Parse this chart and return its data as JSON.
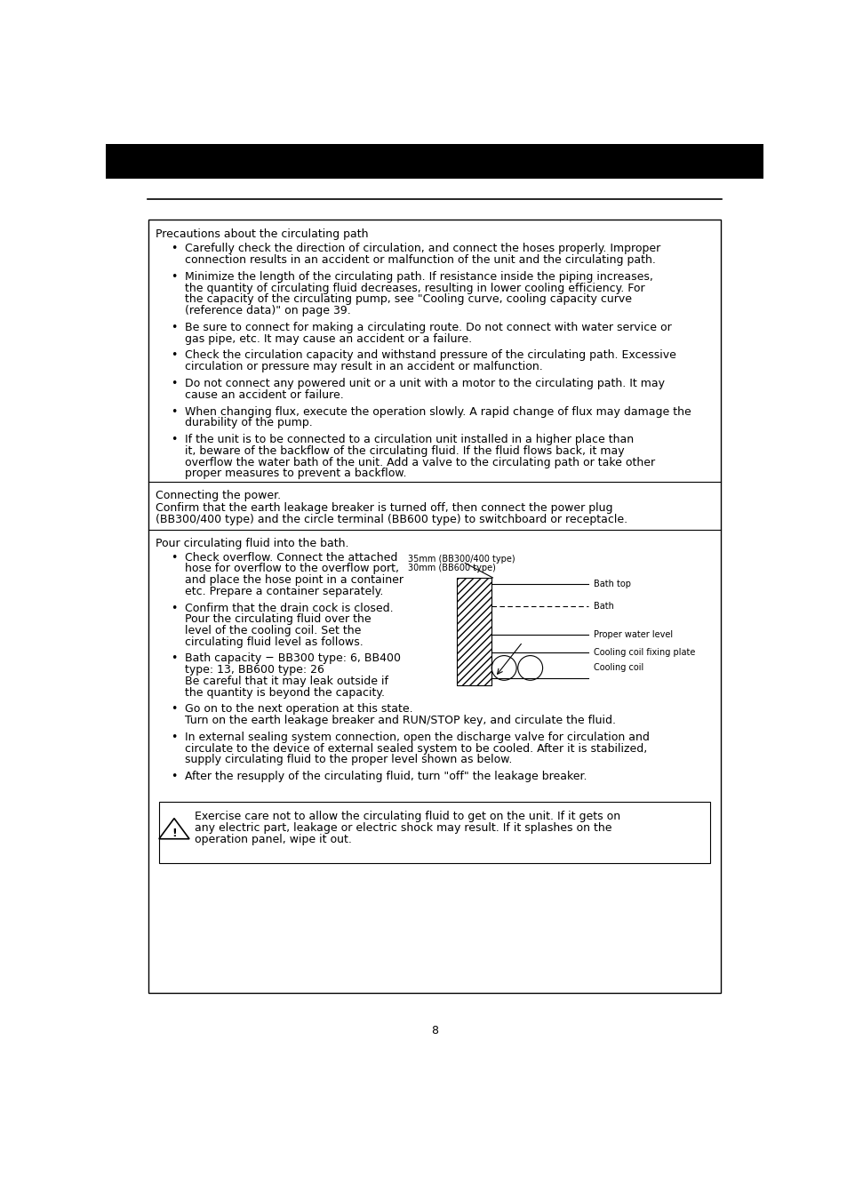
{
  "page_number": "8",
  "header_bar_color": "#000000",
  "section1_title": "Precautions about the circulating path",
  "section1_bullets": [
    "Carefully check the direction of circulation, and connect the hoses properly.  Improper connection results in an accident or malfunction of the unit and the circulating path.",
    "Minimize the length of the circulating path. If resistance inside the piping increases, the quantity of circulating fluid decreases, resulting in lower cooling efficiency.  For the capacity of the circulating pump, see \"Cooling curve, cooling capacity curve (reference data)\" on page 39.",
    "Be sure to connect for making a circulating route.   Do not connect with water service or gas pipe, etc.   It may cause an accident or a failure.",
    "Check the circulation capacity and withstand pressure of the circulating path.  Excessive circulation or pressure may result in an accident or malfunction.",
    "Do not connect any powered unit or a unit with a motor to the circulating path. It may cause an accident or failure.",
    "When changing flux, execute the operation slowly.   A rapid change of flux may damage the durability of the pump.",
    "If the unit is to be connected to a circulation unit installed in a higher place than it, beware of the backflow of the circulating fluid. If the fluid flows back, it may overflow the water bath of the unit. Add a valve to the circulating path or take other proper measures to prevent a backflow."
  ],
  "section2_title": "Connecting the power.",
  "section2_text": "Confirm that the earth leakage breaker is turned off, then connect the power plug (BB300/400 type) and the circle terminal (BB600 type) to switchboard or receptacle.",
  "section3_title": "Pour circulating fluid into the bath.",
  "section3_bullets_left": [
    "Check overflow.   Connect the attached hose for overflow to the overflow port, and place the hose point in a container etc. Prepare a container separately.",
    "Confirm that the drain cock is closed.   Pour the circulating fluid over the level of the cooling coil.   Set the circulating fluid level as follows.",
    "Bath capacity −   BB300 type: 6, BB400 type: 13, BB600 type: 26\nBe careful that it may leak outside if the quantity is beyond the capacity."
  ],
  "section3_bullets_full": [
    "Go on to the next operation at this state.\nTurn on the earth leakage breaker and RUN/STOP key, and circulate the fluid.",
    "In external sealing system connection, open the discharge valve for circulation and circulate to the device of external sealed system to be cooled.   After it is stabilized, supply circulating fluid to the proper level shown as below.",
    "After the resupply of the circulating fluid, turn \"off\" the leakage breaker."
  ],
  "warning_text": "Exercise care not to allow the circulating fluid to get on the unit. If it gets on any electric part, leakage or electric shock may result. If it splashes on the operation panel, wipe it out.",
  "diagram_labels": {
    "mm_label1": "35mm (BB300/400 type)",
    "mm_label2": "30mm (BB600 type)",
    "bath_top": "Bath top",
    "bath": "Bath",
    "proper_water": "Proper water level",
    "cooling_coil_plate": "Cooling coil fixing plate",
    "cooling_coil": "Cooling coil"
  },
  "font_size_body": 9.0,
  "font_size_diagram": 7.0
}
